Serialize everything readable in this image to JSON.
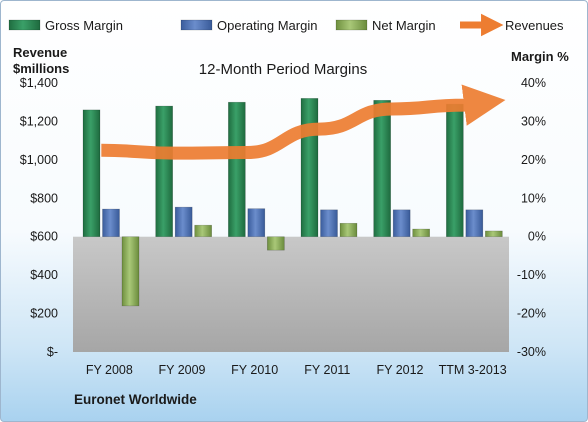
{
  "chart_data": {
    "type": "bar",
    "title": "12-Month Period Margins",
    "company": "Euronet Worldwide",
    "categories": [
      "FY 2008",
      "FY 2009",
      "FY 2010",
      "FY 2011",
      "FY 2012",
      "TTM 3-2013"
    ],
    "series": [
      {
        "name": "Gross Margin",
        "axis": "right",
        "kind": "bar",
        "color": "#2e8b57",
        "values": [
          33,
          34,
          35,
          36,
          35.5,
          34.5
        ]
      },
      {
        "name": "Operating Margin",
        "axis": "right",
        "kind": "bar",
        "color": "#4f73b6",
        "values": [
          7.2,
          7.7,
          7.3,
          7,
          7,
          7
        ]
      },
      {
        "name": "Net Margin",
        "axis": "right",
        "kind": "bar",
        "color": "#8fb15a",
        "values": [
          -18,
          3,
          -3.5,
          3.5,
          2,
          1.5
        ]
      },
      {
        "name": "Revenues",
        "axis": "left",
        "kind": "line",
        "color": "#ed7d31",
        "values": [
          1050,
          1035,
          1038,
          1160,
          1265,
          1285
        ]
      }
    ],
    "ylabel_left": [
      "Revenue",
      "$millions"
    ],
    "ylabel_right": "Margin %",
    "ylim_left": [
      0,
      1400
    ],
    "ylim_right": [
      -30,
      40
    ],
    "yticks_left": [
      "$1,400",
      "$1,200",
      "$1,000",
      "$800",
      "$600",
      "$400",
      "$200",
      "$-"
    ],
    "yticks_right": [
      "40%",
      "30%",
      "20%",
      "10%",
      "0%",
      "-10%",
      "-20%",
      "-30%"
    ],
    "grid": false,
    "legend_position": "top"
  }
}
